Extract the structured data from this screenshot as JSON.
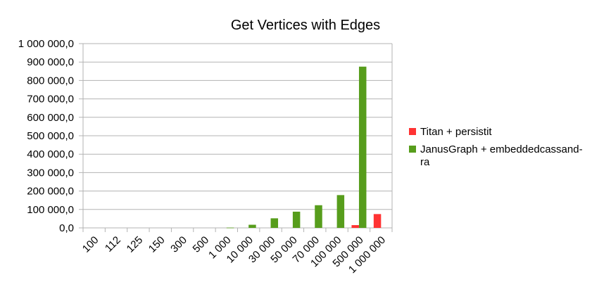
{
  "chart_data": {
    "type": "bar",
    "title": "Get Vertices with Edges",
    "xlabel": "",
    "ylabel": "",
    "categories": [
      "100",
      "112",
      "125",
      "150",
      "300",
      "500",
      "1 000",
      "10 000",
      "30 000",
      "50 000",
      "70 000",
      "100 000",
      "500 000",
      "1 000 000"
    ],
    "ylim": [
      0,
      1000000
    ],
    "y_ticks": [
      {
        "value": 0,
        "label": "0,0"
      },
      {
        "value": 100000,
        "label": "100 000,0"
      },
      {
        "value": 200000,
        "label": "200 000,0"
      },
      {
        "value": 300000,
        "label": "300 000,0"
      },
      {
        "value": 400000,
        "label": "400 000,0"
      },
      {
        "value": 500000,
        "label": "500 000,0"
      },
      {
        "value": 600000,
        "label": "600 000,0"
      },
      {
        "value": 700000,
        "label": "700 000,0"
      },
      {
        "value": 800000,
        "label": "800 000,0"
      },
      {
        "value": 900000,
        "label": "900 000,0"
      },
      {
        "value": 1000000,
        "label": "1 000 000,0"
      }
    ],
    "grid": true,
    "legend_position": "right",
    "series": [
      {
        "name": "Titan + persistit",
        "color": "#ff3333",
        "values": [
          0,
          0,
          0,
          0,
          0,
          0,
          0,
          0,
          0,
          0,
          0,
          0,
          15000,
          75000
        ]
      },
      {
        "name_lines": [
          "JanusGraph + embeddedcassand-",
          "ra"
        ],
        "color": "#579d1c",
        "values": [
          0,
          0,
          0,
          0,
          0,
          0,
          1500,
          17000,
          52000,
          88000,
          123000,
          178000,
          875000,
          0
        ]
      }
    ]
  }
}
